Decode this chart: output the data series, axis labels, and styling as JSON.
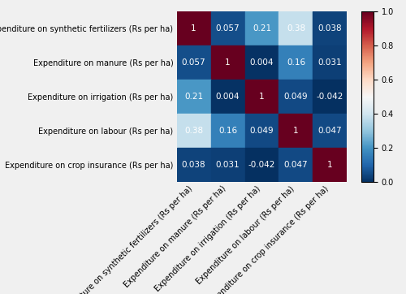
{
  "labels": [
    "Expenditure on synthetic fertilizers (Rs per ha)",
    "Expenditure on manure (Rs per ha)",
    "Expenditure on irrigation (Rs per ha)",
    "Expenditure on labour (Rs per ha)",
    "Expenditure on crop insurance (Rs per ha)"
  ],
  "matrix": [
    [
      1,
      0.057,
      0.21,
      0.38,
      0.038
    ],
    [
      0.057,
      1,
      0.004,
      0.16,
      0.031
    ],
    [
      0.21,
      0.004,
      1,
      0.049,
      -0.042
    ],
    [
      0.38,
      0.16,
      0.049,
      1,
      0.047
    ],
    [
      0.038,
      0.031,
      -0.042,
      0.047,
      1
    ]
  ],
  "vmin": 0.0,
  "vmax": 1.0,
  "cmap": "RdBu_r",
  "colorbar_ticks": [
    0.0,
    0.2,
    0.4,
    0.6,
    0.8,
    1.0
  ],
  "text_color": "white",
  "bg_color": "#f0f0f0",
  "label_fontsize": 7.0,
  "text_fontsize": 7.5,
  "figsize": [
    5.0,
    3.62
  ],
  "dpi": 100
}
